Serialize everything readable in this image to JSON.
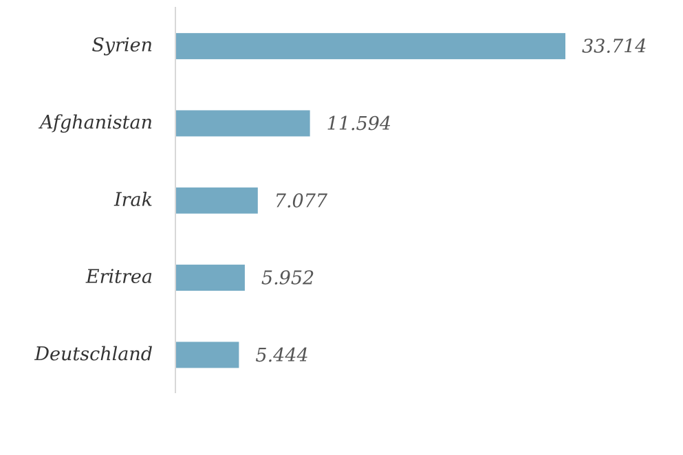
{
  "chart_data": {
    "type": "bar",
    "orientation": "horizontal",
    "categories": [
      "Syrien",
      "Afghanistan",
      "Irak",
      "Eritrea",
      "Deutschland"
    ],
    "values": [
      33714,
      11594,
      7077,
      5952,
      5444
    ],
    "value_labels": [
      "33.714",
      "11.594",
      "7.077",
      "5.952",
      "5.444"
    ],
    "color": "#74aac3"
  }
}
